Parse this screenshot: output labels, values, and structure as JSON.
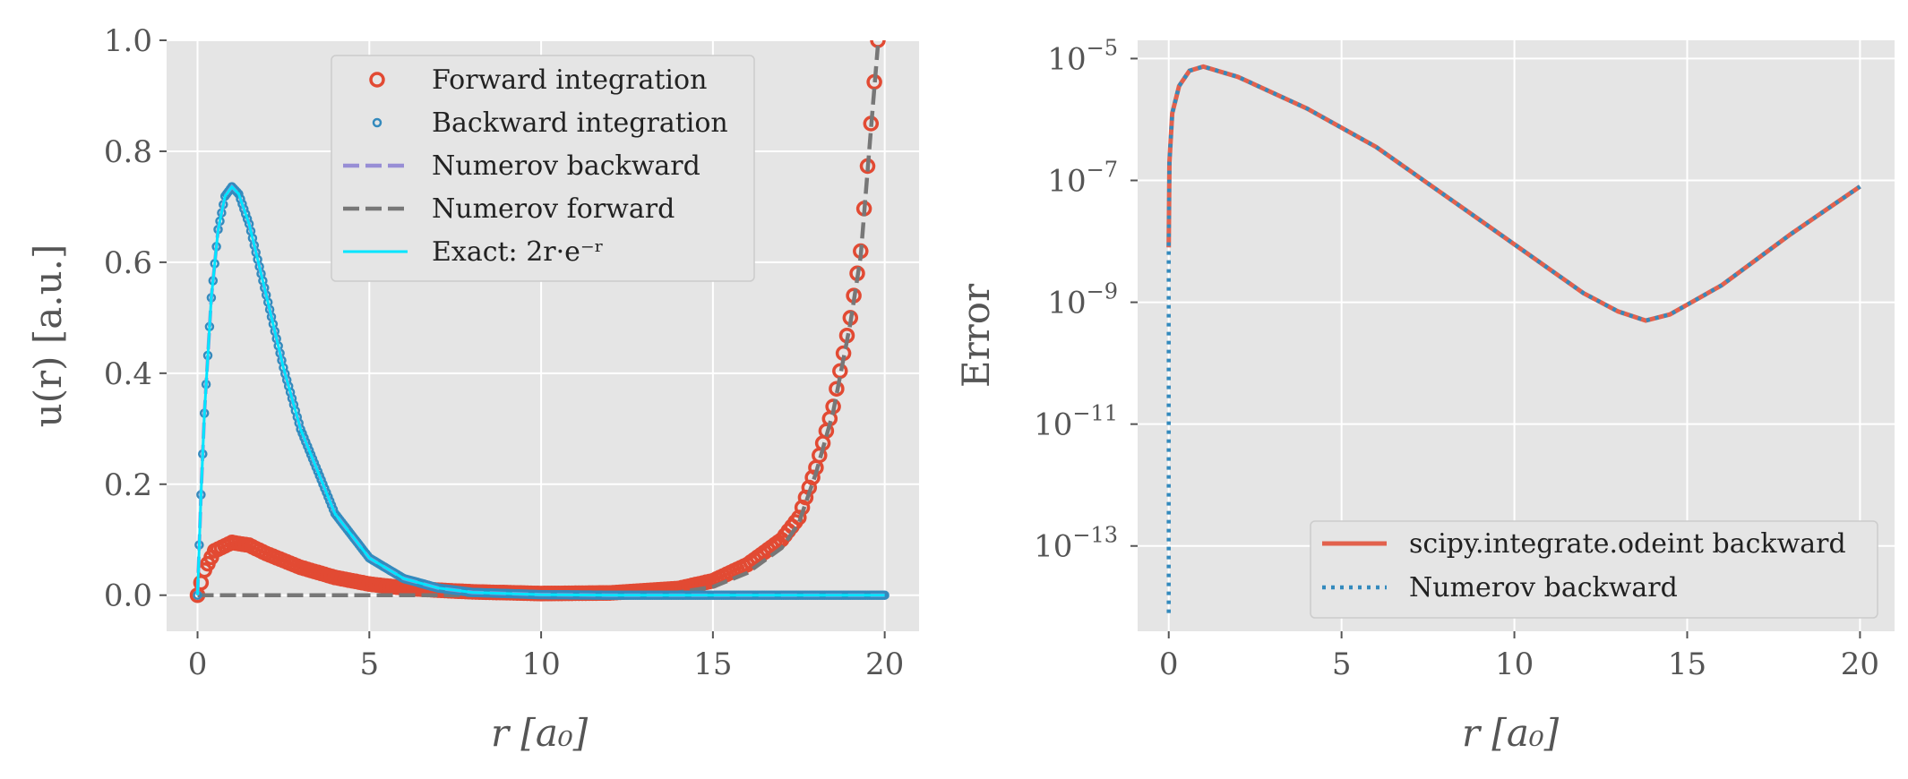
{
  "chart_data": [
    {
      "type": "line",
      "xlabel": "r [a₀]",
      "ylabel": "u(r) [a.u.]",
      "xlim": [
        -0.9,
        21
      ],
      "ylim": [
        -0.065,
        1.0
      ],
      "xticks": [
        "0",
        "5",
        "10",
        "15",
        "20"
      ],
      "yticks": [
        "0.0",
        "0.2",
        "0.4",
        "0.6",
        "0.8",
        "1.0"
      ],
      "grid": true,
      "legend_position": "top-center",
      "colors": {
        "forward": "#e24a33",
        "backward": "#348abd",
        "numerov_backward": "#988ed5",
        "numerov_forward": "#777777",
        "exact": "#00e5ff",
        "axes_bg": "#e5e5e5"
      },
      "series": [
        {
          "name": "Forward integration",
          "style": "markers-open-circle-large",
          "x": [
            0,
            0.2,
            0.5,
            1,
            1.5,
            2,
            3,
            4,
            5,
            6,
            7,
            8,
            10,
            12,
            14,
            15,
            16,
            17,
            17.5,
            18,
            18.5,
            19,
            19.3,
            19.6,
            19.8
          ],
          "y": [
            0,
            0.045,
            0.08,
            0.095,
            0.09,
            0.075,
            0.05,
            0.032,
            0.02,
            0.013,
            0.009,
            0.006,
            0.003,
            0.004,
            0.012,
            0.026,
            0.055,
            0.1,
            0.14,
            0.23,
            0.34,
            0.5,
            0.62,
            0.85,
            1.0
          ]
        },
        {
          "name": "Backward integration",
          "style": "markers-small-circle",
          "x": [
            0,
            0.1,
            0.2,
            0.4,
            0.6,
            0.8,
            1,
            1.2,
            1.5,
            2,
            2.5,
            3,
            4,
            5,
            6,
            7,
            8,
            10,
            12,
            15,
            20
          ],
          "y": [
            0,
            0.181,
            0.328,
            0.536,
            0.659,
            0.719,
            0.736,
            0.723,
            0.669,
            0.541,
            0.41,
            0.299,
            0.147,
            0.067,
            0.03,
            0.013,
            0.005,
            0.001,
            0,
            0,
            0
          ]
        },
        {
          "name": "Numerov backward",
          "style": "dashed",
          "x": [
            0,
            0.1,
            0.2,
            0.4,
            0.6,
            0.8,
            1,
            1.2,
            1.5,
            2,
            2.5,
            3,
            4,
            5,
            6,
            7,
            8,
            10,
            12,
            15,
            20
          ],
          "y": [
            0,
            0.181,
            0.328,
            0.536,
            0.659,
            0.719,
            0.736,
            0.723,
            0.669,
            0.541,
            0.41,
            0.299,
            0.147,
            0.067,
            0.03,
            0.013,
            0.005,
            0.001,
            0,
            0,
            0
          ]
        },
        {
          "name": "Numerov forward",
          "style": "dashed",
          "x": [
            0,
            5,
            10,
            14,
            15,
            16,
            17,
            17.5,
            18,
            18.5,
            19,
            19.3,
            19.6,
            19.8
          ],
          "y": [
            0,
            0,
            0,
            0.005,
            0.015,
            0.04,
            0.085,
            0.13,
            0.22,
            0.33,
            0.49,
            0.61,
            0.84,
            0.99
          ]
        },
        {
          "name": "Exact: 2r·e⁻ʳ",
          "style": "solid",
          "x": [
            0,
            0.1,
            0.2,
            0.4,
            0.6,
            0.8,
            1,
            1.2,
            1.5,
            2,
            2.5,
            3,
            4,
            5,
            6,
            7,
            8,
            10,
            12,
            15,
            20
          ],
          "y": [
            0,
            0.181,
            0.328,
            0.536,
            0.659,
            0.719,
            0.736,
            0.723,
            0.669,
            0.541,
            0.41,
            0.299,
            0.147,
            0.067,
            0.03,
            0.013,
            0.005,
            0.001,
            0,
            0,
            0
          ]
        }
      ]
    },
    {
      "type": "line",
      "xlabel": "r [a₀]",
      "ylabel": "Error",
      "yscale": "log",
      "xlim": [
        -0.9,
        21
      ],
      "ylim_log10": [
        -14.4,
        -4.7
      ],
      "xticks": [
        "0",
        "5",
        "10",
        "15",
        "20"
      ],
      "yticks": [
        "10",
        "10",
        "10",
        "10",
        "10"
      ],
      "ytick_exponents": [
        "−5",
        "−7",
        "−9",
        "−11",
        "−13"
      ],
      "grid": true,
      "legend_position": "lower-right",
      "series": [
        {
          "name": "scipy.integrate.odeint backward",
          "style": "solid",
          "x": [
            0,
            0.02,
            0.1,
            0.3,
            0.6,
            1,
            2,
            4,
            6,
            8,
            10,
            12,
            13,
            13.8,
            14.5,
            16,
            18,
            20
          ],
          "log10_y": [
            -8.1,
            -6.7,
            -5.9,
            -5.45,
            -5.2,
            -5.13,
            -5.3,
            -5.82,
            -6.45,
            -7.25,
            -8.05,
            -8.85,
            -9.15,
            -9.3,
            -9.2,
            -8.72,
            -7.88,
            -7.1
          ]
        },
        {
          "name": "Numerov backward",
          "style": "dotted",
          "x": [
            0,
            0,
            0.02,
            0.1,
            0.3,
            0.6,
            1,
            2,
            4,
            6,
            8,
            10,
            12,
            13,
            13.8,
            14.5,
            16,
            18,
            20
          ],
          "log10_y": [
            -14.1,
            -8.1,
            -6.7,
            -5.9,
            -5.45,
            -5.2,
            -5.13,
            -5.3,
            -5.82,
            -6.45,
            -7.25,
            -8.05,
            -8.85,
            -9.15,
            -9.3,
            -9.2,
            -8.72,
            -7.88,
            -7.1
          ]
        }
      ]
    }
  ]
}
